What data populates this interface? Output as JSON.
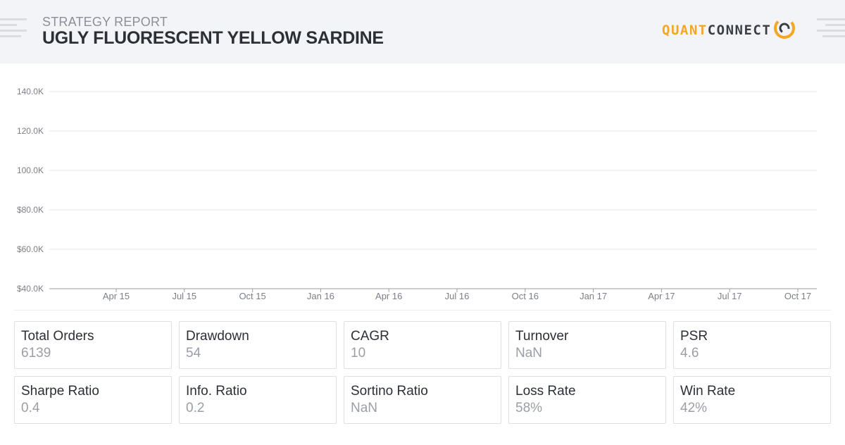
{
  "header": {
    "subtitle": "STRATEGY REPORT",
    "title": "UGLY FLUORESCENT YELLOW SARDINE",
    "logo_part1": "QUANT",
    "logo_part2": "CONNECT"
  },
  "chart_data": {
    "type": "line",
    "title": "",
    "xlabel": "",
    "ylabel": "",
    "ylim": [
      40000,
      140000
    ],
    "y_ticks": [
      {
        "value": 140000,
        "label": "140.0K"
      },
      {
        "value": 120000,
        "label": "120.0K"
      },
      {
        "value": 100000,
        "label": "100.0K"
      },
      {
        "value": 80000,
        "label": "$80.0K"
      },
      {
        "value": 60000,
        "label": "$60.0K"
      },
      {
        "value": 40000,
        "label": "$40.0K"
      }
    ],
    "x_ticks": [
      "Apr 15",
      "Jul 15",
      "Oct 15",
      "Jan 16",
      "Apr 16",
      "Jul 16",
      "Oct 16",
      "Jan 17",
      "Apr 17",
      "Jul 17",
      "Oct 17"
    ],
    "series": [],
    "grid": true,
    "colors": {
      "grid": "#e6e8ec",
      "axis": "#9a9ea6",
      "tick_label": "#7a7f88"
    }
  },
  "stats": [
    {
      "label": "Total Orders",
      "value": "6139"
    },
    {
      "label": "Drawdown",
      "value": "54"
    },
    {
      "label": "CAGR",
      "value": "10"
    },
    {
      "label": "Turnover",
      "value": "NaN"
    },
    {
      "label": "PSR",
      "value": "4.6"
    },
    {
      "label": "Sharpe Ratio",
      "value": "0.4"
    },
    {
      "label": "Info. Ratio",
      "value": "0.2"
    },
    {
      "label": "Sortino Ratio",
      "value": "NaN"
    },
    {
      "label": "Loss Rate",
      "value": "58%"
    },
    {
      "label": "Win Rate",
      "value": "42%"
    }
  ],
  "colors": {
    "brand": "#f5a623",
    "text_dark": "#2b2f36",
    "text_muted": "#9a9ea6"
  }
}
